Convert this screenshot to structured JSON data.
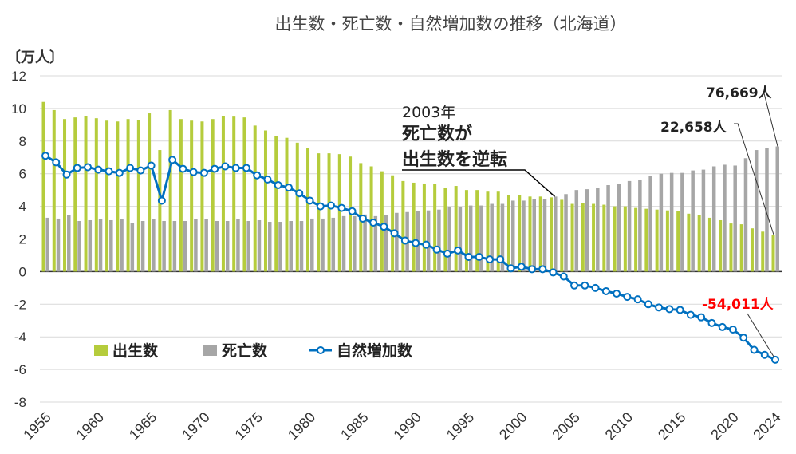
{
  "chart_data": {
    "type": "bar+line",
    "title": "出生数・死亡数・自然増加数の推移（北海道）",
    "ylabel": "〔万人〕",
    "ylim": [
      -8,
      12
    ],
    "yticks": [
      "12",
      "10",
      "8",
      "6",
      "4",
      "2",
      "0",
      "-2",
      "-4",
      "-6",
      "-8"
    ],
    "xticks": [
      "1955",
      "1960",
      "1965",
      "1970",
      "1975",
      "1980",
      "1985",
      "1990",
      "1995",
      "2000",
      "2005",
      "2010",
      "2015",
      "2020",
      "2024"
    ],
    "grid": true,
    "legend_placement": "lower-left inside",
    "x": [
      1955,
      1956,
      1957,
      1958,
      1959,
      1960,
      1961,
      1962,
      1963,
      1964,
      1965,
      1966,
      1967,
      1968,
      1969,
      1970,
      1971,
      1972,
      1973,
      1974,
      1975,
      1976,
      1977,
      1978,
      1979,
      1980,
      1981,
      1982,
      1983,
      1984,
      1985,
      1986,
      1987,
      1988,
      1989,
      1990,
      1991,
      1992,
      1993,
      1994,
      1995,
      1996,
      1997,
      1998,
      1999,
      2000,
      2001,
      2002,
      2003,
      2004,
      2005,
      2006,
      2007,
      2008,
      2009,
      2010,
      2011,
      2012,
      2013,
      2014,
      2015,
      2016,
      2017,
      2018,
      2019,
      2020,
      2021,
      2022,
      2023,
      2024
    ],
    "series": [
      {
        "name": "出生数",
        "type": "bar",
        "color": "#b5cc3c",
        "values": [
          10.4,
          9.9,
          9.35,
          9.45,
          9.55,
          9.4,
          9.25,
          9.2,
          9.35,
          9.3,
          9.7,
          7.45,
          9.9,
          9.35,
          9.25,
          9.2,
          9.35,
          9.55,
          9.5,
          9.45,
          8.95,
          8.65,
          8.3,
          8.2,
          7.9,
          7.55,
          7.25,
          7.25,
          7.2,
          7.05,
          6.65,
          6.45,
          6.15,
          5.9,
          5.55,
          5.45,
          5.4,
          5.35,
          5.15,
          5.25,
          5.0,
          5.0,
          4.9,
          4.9,
          4.7,
          4.7,
          4.6,
          4.6,
          4.55,
          4.4,
          4.15,
          4.2,
          4.15,
          4.1,
          4.0,
          4.0,
          3.9,
          3.85,
          3.8,
          3.75,
          3.7,
          3.55,
          3.45,
          3.3,
          3.15,
          2.95,
          2.9,
          2.65,
          2.45,
          2.27
        ]
      },
      {
        "name": "死亡数",
        "type": "bar",
        "color": "#a6a6a6",
        "values": [
          3.3,
          3.25,
          3.45,
          3.1,
          3.15,
          3.2,
          3.15,
          3.2,
          3.0,
          3.1,
          3.2,
          3.1,
          3.1,
          3.1,
          3.2,
          3.2,
          3.1,
          3.1,
          3.2,
          3.1,
          3.15,
          3.05,
          3.05,
          3.1,
          3.1,
          3.25,
          3.25,
          3.3,
          3.4,
          3.4,
          3.5,
          3.4,
          3.45,
          3.6,
          3.65,
          3.7,
          3.75,
          3.8,
          3.95,
          3.95,
          4.05,
          4.05,
          4.15,
          4.15,
          4.35,
          4.35,
          4.45,
          4.45,
          4.6,
          4.75,
          5.0,
          5.05,
          5.15,
          5.3,
          5.35,
          5.55,
          5.6,
          5.85,
          6.0,
          6.05,
          6.05,
          6.2,
          6.25,
          6.45,
          6.55,
          6.5,
          6.95,
          7.45,
          7.55,
          7.67
        ]
      },
      {
        "name": "自然増加数",
        "type": "line",
        "color": "#0070c0",
        "values": [
          7.1,
          6.7,
          5.95,
          6.35,
          6.4,
          6.25,
          6.15,
          6.05,
          6.35,
          6.2,
          6.5,
          4.35,
          6.85,
          6.3,
          6.1,
          6.05,
          6.3,
          6.45,
          6.35,
          6.35,
          5.9,
          5.65,
          5.3,
          5.15,
          4.8,
          4.35,
          4.0,
          4.05,
          3.9,
          3.7,
          3.25,
          3.0,
          2.75,
          2.35,
          1.9,
          1.75,
          1.65,
          1.35,
          1.1,
          1.3,
          0.9,
          0.9,
          0.75,
          0.75,
          0.2,
          0.3,
          0.15,
          0.15,
          -0.05,
          -0.3,
          -0.85,
          -0.85,
          -1.0,
          -1.2,
          -1.35,
          -1.55,
          -1.7,
          -2.0,
          -2.2,
          -2.3,
          -2.35,
          -2.65,
          -2.8,
          -3.15,
          -3.4,
          -3.55,
          -4.05,
          -4.8,
          -5.1,
          -5.4
        ]
      }
    ],
    "annotations": {
      "crossover_year": "2003年",
      "crossover_line1": "死亡数が",
      "crossover_line2": "出生数を逆転",
      "deaths_2024": "76,669人",
      "births_2024": "22,658人",
      "natural_2024": "-54,011人"
    },
    "annotation_colors": {
      "natural_2024": "#ff0000"
    }
  }
}
